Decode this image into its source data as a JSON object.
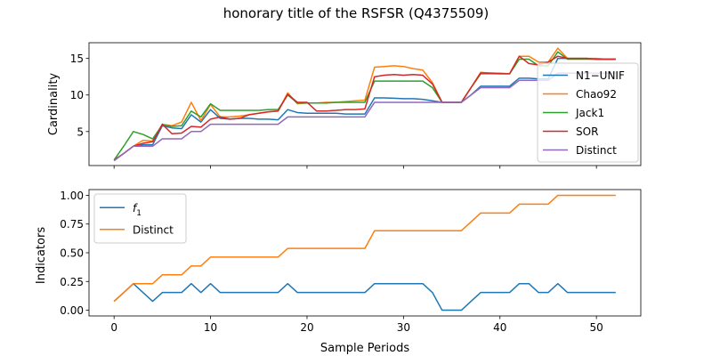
{
  "figure": {
    "title": "honorary title of the RSFSR (Q4375509)"
  },
  "chart_data": [
    {
      "type": "line",
      "ylabel": "Cardinality",
      "xlabel": "",
      "xlim": [
        -2.6,
        54.6
      ],
      "ylim": [
        0.35,
        17.15
      ],
      "yticks": [
        5,
        10,
        15
      ],
      "xticks": [
        0,
        10,
        20,
        30,
        40,
        50
      ],
      "show_xtick_labels": false,
      "grid": false,
      "legend_position": "right",
      "x": [
        0,
        1,
        2,
        3,
        4,
        5,
        6,
        7,
        8,
        9,
        10,
        11,
        12,
        13,
        14,
        15,
        16,
        17,
        18,
        19,
        20,
        21,
        22,
        23,
        24,
        25,
        26,
        27,
        28,
        29,
        30,
        31,
        32,
        33,
        34,
        35,
        36,
        37,
        38,
        39,
        40,
        41,
        42,
        43,
        44,
        45,
        46,
        47,
        48,
        49,
        50,
        51,
        52
      ],
      "series": [
        {
          "name": "N1−UNIF",
          "color": "#1f77b4",
          "values": [
            1.1,
            2.0,
            3.0,
            3.2,
            3.2,
            5.8,
            5.5,
            5.4,
            7.3,
            6.3,
            8.0,
            6.8,
            6.7,
            6.8,
            6.8,
            6.7,
            6.7,
            6.6,
            8.0,
            7.6,
            7.5,
            7.5,
            7.5,
            7.5,
            7.4,
            7.4,
            7.4,
            9.6,
            9.6,
            9.55,
            9.5,
            9.5,
            9.4,
            9.2,
            9.0,
            9.0,
            9.0,
            10.0,
            11.2,
            11.2,
            11.2,
            11.2,
            12.3,
            12.3,
            12.2,
            12.2,
            15.0,
            15.0,
            15.0,
            15.0,
            14.9,
            14.9,
            14.9
          ]
        },
        {
          "name": "Chao92",
          "color": "#ff7f0e",
          "values": [
            1.1,
            2.0,
            3.0,
            3.8,
            3.7,
            6.0,
            5.8,
            6.3,
            9.0,
            6.5,
            8.7,
            7.0,
            7.0,
            7.1,
            7.3,
            7.5,
            7.7,
            7.8,
            10.3,
            8.8,
            8.9,
            8.9,
            9.0,
            9.0,
            9.1,
            9.2,
            9.3,
            13.8,
            13.9,
            14.0,
            13.9,
            13.6,
            13.4,
            11.7,
            9.0,
            9.0,
            9.0,
            11.0,
            13.1,
            13.0,
            13.0,
            12.9,
            15.3,
            15.3,
            14.5,
            14.5,
            16.4,
            15.0,
            15.0,
            15.0,
            15.0,
            14.9,
            14.9
          ]
        },
        {
          "name": "Jack1",
          "color": "#2ca02c",
          "values": [
            1.1,
            3.0,
            5.0,
            4.6,
            4.0,
            5.9,
            5.7,
            5.8,
            7.8,
            7.0,
            8.8,
            7.9,
            7.9,
            7.9,
            7.9,
            7.9,
            8.0,
            8.0,
            10.0,
            8.9,
            8.9,
            8.9,
            8.9,
            9.0,
            9.0,
            9.0,
            9.0,
            11.9,
            11.9,
            11.9,
            11.9,
            11.9,
            11.9,
            11.0,
            9.0,
            9.0,
            9.0,
            11.0,
            12.9,
            12.9,
            12.9,
            12.9,
            14.9,
            14.9,
            14.0,
            14.0,
            15.9,
            14.9,
            14.9,
            14.9,
            14.9,
            14.9,
            14.9
          ]
        },
        {
          "name": "SOR",
          "color": "#d62728",
          "values": [
            1.1,
            2.0,
            3.0,
            3.4,
            3.6,
            6.0,
            4.7,
            4.8,
            5.7,
            5.6,
            6.7,
            7.0,
            6.7,
            6.8,
            7.3,
            7.5,
            7.7,
            7.8,
            10.1,
            9.0,
            9.0,
            7.8,
            7.8,
            7.9,
            8.0,
            8.0,
            8.1,
            12.5,
            12.7,
            12.8,
            12.7,
            12.8,
            12.7,
            11.5,
            9.0,
            9.0,
            9.0,
            11.0,
            13.0,
            13.0,
            12.9,
            12.9,
            15.3,
            14.3,
            14.1,
            14.5,
            15.3,
            15.0,
            15.0,
            15.0,
            14.9,
            14.9,
            14.9
          ]
        },
        {
          "name": "Distinct",
          "color": "#9467bd",
          "values": [
            1,
            2,
            3,
            3,
            3,
            4,
            4,
            4,
            5,
            5,
            6,
            6,
            6,
            6,
            6,
            6,
            6,
            6,
            7,
            7,
            7,
            7,
            7,
            7,
            7,
            7,
            7,
            9,
            9,
            9,
            9,
            9,
            9,
            9,
            9,
            9,
            9,
            10,
            11,
            11,
            11,
            11,
            12,
            12,
            12,
            12,
            13,
            13,
            13,
            13,
            13,
            13,
            13
          ]
        }
      ]
    },
    {
      "type": "line",
      "ylabel": "Indicators",
      "xlabel": "Sample Periods",
      "xlim": [
        -2.6,
        54.6
      ],
      "ylim": [
        -0.05,
        1.05
      ],
      "yticks": [
        0.0,
        0.25,
        0.5,
        0.75,
        1.0
      ],
      "ytick_labels": [
        "0.00",
        "0.25",
        "0.50",
        "0.75",
        "1.00"
      ],
      "xticks": [
        0,
        10,
        20,
        30,
        40,
        50
      ],
      "xtick_labels": [
        "0",
        "10",
        "20",
        "30",
        "40",
        "50"
      ],
      "grid": false,
      "legend_position": "top-left",
      "x": [
        0,
        1,
        2,
        3,
        4,
        5,
        6,
        7,
        8,
        9,
        10,
        11,
        12,
        13,
        14,
        15,
        16,
        17,
        18,
        19,
        20,
        21,
        22,
        23,
        24,
        25,
        26,
        27,
        28,
        29,
        30,
        31,
        32,
        33,
        34,
        35,
        36,
        37,
        38,
        39,
        40,
        41,
        42,
        43,
        44,
        45,
        46,
        47,
        48,
        49,
        50,
        51,
        52
      ],
      "series": [
        {
          "name": "f1",
          "label_main": "f",
          "label_sub": "1",
          "color": "#1f77b4",
          "values": [
            0.077,
            0.154,
            0.231,
            0.154,
            0.077,
            0.154,
            0.154,
            0.154,
            0.231,
            0.154,
            0.231,
            0.154,
            0.154,
            0.154,
            0.154,
            0.154,
            0.154,
            0.154,
            0.231,
            0.154,
            0.154,
            0.154,
            0.154,
            0.154,
            0.154,
            0.154,
            0.154,
            0.231,
            0.231,
            0.231,
            0.231,
            0.231,
            0.231,
            0.154,
            0.0,
            0.0,
            0.0,
            0.077,
            0.154,
            0.154,
            0.154,
            0.154,
            0.231,
            0.231,
            0.154,
            0.154,
            0.231,
            0.154,
            0.154,
            0.154,
            0.154,
            0.154,
            0.154
          ]
        },
        {
          "name": "Distinct",
          "color": "#ff7f0e",
          "values": [
            0.077,
            0.154,
            0.231,
            0.231,
            0.231,
            0.308,
            0.308,
            0.308,
            0.385,
            0.385,
            0.462,
            0.462,
            0.462,
            0.462,
            0.462,
            0.462,
            0.462,
            0.462,
            0.538,
            0.538,
            0.538,
            0.538,
            0.538,
            0.538,
            0.538,
            0.538,
            0.538,
            0.692,
            0.692,
            0.692,
            0.692,
            0.692,
            0.692,
            0.692,
            0.692,
            0.692,
            0.692,
            0.769,
            0.846,
            0.846,
            0.846,
            0.846,
            0.923,
            0.923,
            0.923,
            0.923,
            1.0,
            1.0,
            1.0,
            1.0,
            1.0,
            1.0,
            1.0
          ]
        }
      ]
    }
  ]
}
